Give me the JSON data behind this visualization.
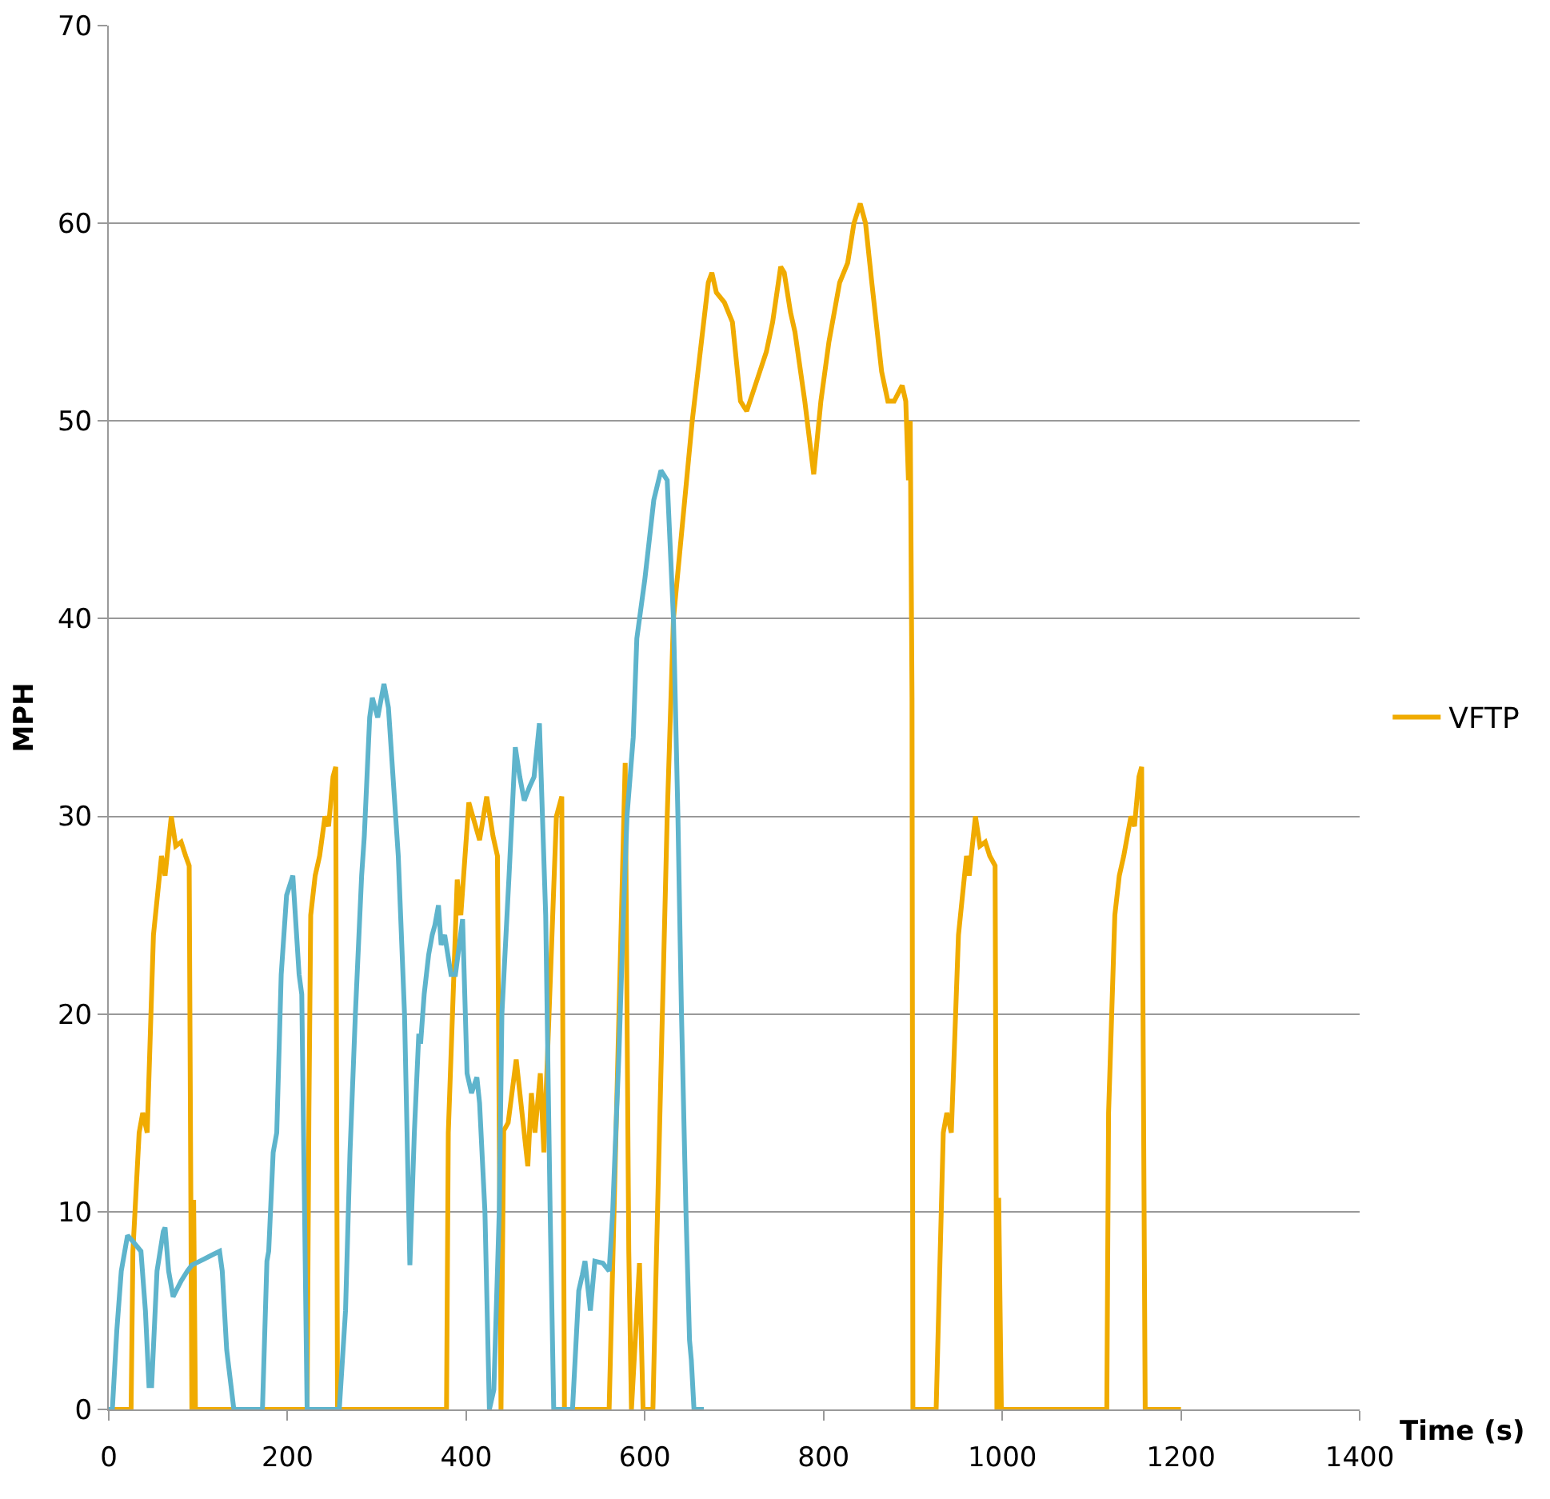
{
  "chart_data": {
    "type": "line",
    "xlabel": "Time (s)",
    "ylabel": "MPH",
    "xlim": [
      0,
      1400
    ],
    "xticks": [
      0,
      200,
      400,
      600,
      800,
      1000,
      1200,
      1400
    ],
    "ylim": [
      0,
      70
    ],
    "yticks": [
      0,
      10,
      20,
      30,
      40,
      50,
      60,
      70
    ],
    "grid": "y",
    "legend": "right",
    "line_style": "solid",
    "marker": "none",
    "series": [
      {
        "name": "VFTP",
        "color": "#f0ab00",
        "x": [
          0,
          25,
          27,
          34,
          38,
          43,
          50,
          59,
          63,
          70,
          75,
          81,
          86,
          90,
          93,
          95,
          97,
          222,
          224,
          226,
          231,
          236,
          242,
          246,
          251,
          254,
          256,
          378,
          380,
          390,
          394,
          403,
          415,
          423,
          430,
          435,
          439,
          442,
          447,
          456,
          469,
          473,
          477,
          483,
          487,
          501,
          507,
          510,
          560,
          578,
          582,
          585,
          594,
          598,
          609,
          612,
          625,
          632,
          653,
          671,
          675,
          680,
          689,
          698,
          707,
          714,
          725,
          736,
          743,
          752,
          756,
          763,
          768,
          779,
          789,
          797,
          806,
          818,
          827,
          834,
          841,
          847,
          854,
          865,
          872,
          879,
          888,
          892,
          895,
          897,
          899,
          900,
          926,
          934,
          938,
          943,
          951,
          960,
          963,
          970,
          975,
          981,
          986,
          992,
          994,
          996,
          999,
          1117,
          1119,
          1126,
          1131,
          1136,
          1144,
          1148,
          1153,
          1156,
          1160,
          1200
        ],
        "values": [
          0,
          0,
          8,
          14,
          15,
          14,
          24,
          28,
          27,
          30,
          28.5,
          28.7,
          28,
          27.5,
          0,
          10.6,
          0,
          0,
          15,
          25,
          27,
          28,
          30,
          29.5,
          32,
          32.5,
          0,
          0,
          14,
          26.8,
          25,
          30.7,
          28.8,
          31,
          29,
          28,
          0,
          14.1,
          14.5,
          17.7,
          12.3,
          16,
          14,
          17,
          13,
          30,
          31,
          0,
          0,
          32.7,
          8,
          0,
          7.4,
          0,
          0,
          6,
          30,
          40,
          50,
          57,
          57.5,
          56.5,
          56,
          55,
          51,
          50.5,
          52,
          53.5,
          55,
          57.8,
          57.5,
          55.5,
          54.5,
          51,
          47.3,
          51,
          54,
          57,
          58,
          60,
          61,
          60,
          57,
          52.5,
          51,
          51,
          51.8,
          51,
          47,
          50,
          36,
          0,
          0,
          14,
          15,
          14,
          24,
          28,
          27,
          30,
          28.5,
          28.7,
          28,
          27.5,
          0,
          10.7,
          0,
          0,
          15,
          25,
          27,
          28,
          30,
          29.5,
          32,
          32.5,
          0,
          0
        ]
      },
      {
        "color": "#5eb4cc",
        "x": [
          0,
          4,
          9,
          14,
          21,
          27,
          36,
          41,
          45,
          48,
          54,
          61,
          63,
          67,
          72,
          81,
          88,
          93,
          102,
          115,
          124,
          127,
          132,
          140,
          172,
          177,
          179,
          184,
          188,
          193,
          199,
          206,
          213,
          216,
          222,
          258,
          265,
          270,
          276,
          283,
          286,
          292,
          295,
          301,
          308,
          313,
          324,
          331,
          337,
          342,
          347,
          349,
          353,
          358,
          362,
          365,
          369,
          372,
          376,
          383,
          388,
          396,
          401,
          406,
          412,
          415,
          421,
          426,
          431,
          437,
          440,
          448,
          455,
          460,
          465,
          471,
          476,
          482,
          489,
          494,
          498,
          519,
          526,
          530,
          533,
          539,
          544,
          553,
          560,
          564,
          571,
          576,
          580,
          587,
          591,
          600,
          605,
          610,
          618,
          625,
          632,
          637,
          641,
          646,
          650,
          652,
          655,
          666
        ],
        "values": [
          0,
          0,
          4,
          7,
          8.8,
          8.5,
          8,
          5,
          1.2,
          1.2,
          7,
          9,
          9.2,
          7,
          5.7,
          6.5,
          7,
          7.3,
          7.5,
          7.8,
          8,
          7,
          3,
          0,
          0,
          7.5,
          8,
          13,
          14,
          22,
          26,
          27,
          22,
          21,
          0,
          0,
          5,
          13,
          20,
          27,
          29,
          35,
          36,
          35,
          36.7,
          35.5,
          28,
          20,
          7.3,
          14,
          19,
          18.5,
          21,
          23,
          24,
          24.5,
          25.5,
          23.5,
          24,
          22,
          22,
          24.8,
          17,
          16,
          16.8,
          15.5,
          10,
          0,
          1,
          10,
          20,
          27,
          33.5,
          32,
          30.8,
          31.5,
          32,
          34.7,
          25,
          10,
          0,
          0,
          6,
          6.8,
          7.5,
          5,
          7.5,
          7.4,
          7,
          10,
          18,
          25,
          30,
          34,
          39,
          42,
          44,
          46,
          47.5,
          47,
          40,
          30,
          20,
          10,
          3.5,
          2.5,
          0,
          0
        ]
      }
    ]
  }
}
